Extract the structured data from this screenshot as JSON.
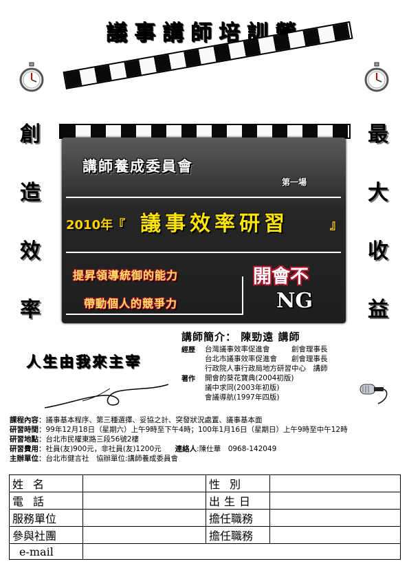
{
  "title": "議事講師培訓營",
  "left_slogan": [
    "創",
    "造",
    "效",
    "率"
  ],
  "right_slogan": [
    "最",
    "大",
    "收",
    "益"
  ],
  "board": {
    "committee": "講師養成委員會",
    "session": "第一場",
    "event_year": "2010年『",
    "event_name": "議事效率研習",
    "event_close": "』",
    "slogan_1": "提昇領導統御的能力",
    "slogan_2": "帶動個人的競爭力",
    "slogan_main": "開會不",
    "slogan_ng": "NG"
  },
  "speaker": "講師簡介： 陳勁遠 講師",
  "motto": "人生由我來主宰",
  "bio": {
    "experience_label": "經歷",
    "experience": [
      "台灣議事效率促進會　　　創會理事長",
      "台北市議事效率促進會　　創會理事長",
      "行政院人事行政局地方研習中心　講師"
    ],
    "works_label": "著作",
    "works": [
      "開會的葵花寶典(2004初版)",
      "議中求同(2003年初版)",
      "會議導航(1997年四版)"
    ]
  },
  "info": {
    "content_label": "課程內容",
    "content": "：議事基本程序、第三種選擇、妥協之計、突發狀況處置、議事基本面",
    "time_label": "研習時間",
    "time": "：99年12月18日（星期六）上午9時至下午4時；100年1月16日（星期日）上午9時至中午12時",
    "place_label": "研習地點",
    "place": "：台北市民權東路三段56號2樓",
    "fee_label": "研習費用",
    "fee": "：社員(友)900元，非社員(友)1200元",
    "contact_label": "連絡人",
    "contact": ":陳仕華　0968-142049",
    "host_label": "主辦單位",
    "host": "：台北市健言社　協辦單位:講師養成委員會"
  },
  "form": {
    "name": "姓名",
    "gender": "性別",
    "phone": "電話",
    "birth": "出生日",
    "unit": "服務單位",
    "position_1": "擔任職務",
    "club": "參與社團",
    "position_2": "擔任職務",
    "email": "e-mail"
  },
  "colors": {
    "board": "#262626",
    "highlight": "#ffe600",
    "slogan_outline": "#b0122a"
  },
  "icons": [
    "stopwatch-icon",
    "microphone-icon",
    "flourish-ornament"
  ]
}
